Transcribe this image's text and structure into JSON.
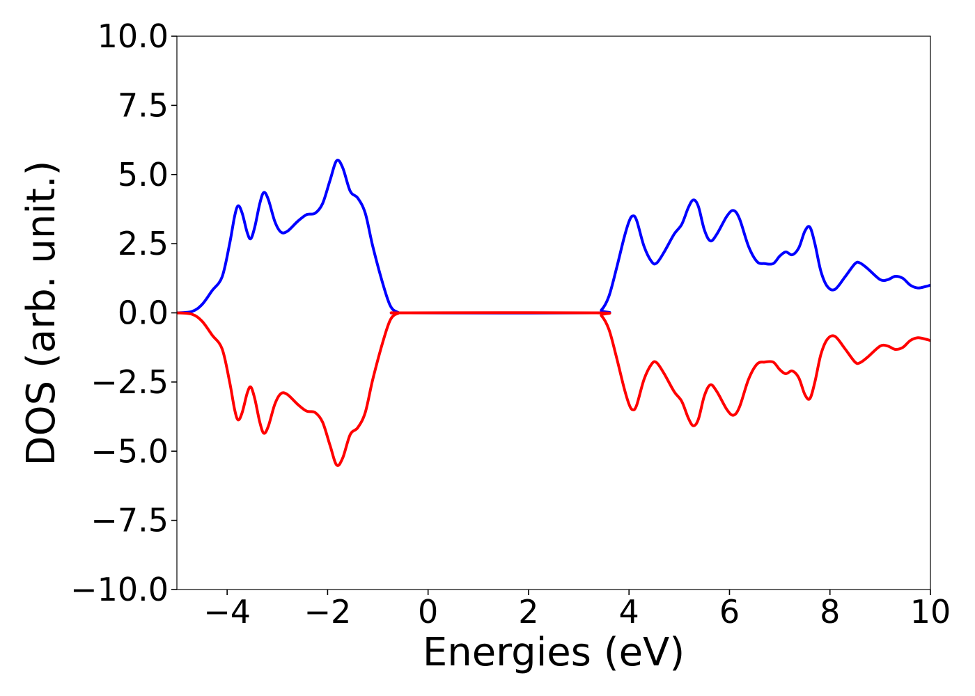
{
  "chart_data": {
    "type": "line",
    "title": "",
    "xlabel": "Energies (eV)",
    "ylabel": "DOS (arb. unit.)",
    "xlim": [
      -5,
      10
    ],
    "ylim": [
      -10,
      10
    ],
    "grid": false,
    "legend": "none",
    "x_ticks": [
      -4,
      -2,
      0,
      2,
      4,
      6,
      8,
      10
    ],
    "x_tick_labels": [
      "−4",
      "−2",
      "0",
      "2",
      "4",
      "6",
      "8",
      "10"
    ],
    "y_ticks": [
      10,
      7.5,
      5,
      2.5,
      0,
      -2.5,
      -5,
      -7.5,
      -10
    ],
    "y_tick_labels": [
      "10.0",
      "7.5",
      "5.0",
      "2.5",
      "0.0",
      "−2.5",
      "−5.0",
      "−7.5",
      "−10.0"
    ],
    "series": [
      {
        "color": "#0000ff",
        "points": [
          [
            -5.0,
            0.0
          ],
          [
            -4.7,
            0.05
          ],
          [
            -4.5,
            0.3
          ],
          [
            -4.3,
            0.8
          ],
          [
            -4.1,
            1.3
          ],
          [
            -3.95,
            2.5
          ],
          [
            -3.85,
            3.5
          ],
          [
            -3.78,
            3.87
          ],
          [
            -3.7,
            3.6
          ],
          [
            -3.6,
            2.9
          ],
          [
            -3.53,
            2.68
          ],
          [
            -3.45,
            3.1
          ],
          [
            -3.35,
            3.95
          ],
          [
            -3.27,
            4.35
          ],
          [
            -3.18,
            4.1
          ],
          [
            -3.05,
            3.3
          ],
          [
            -2.93,
            2.92
          ],
          [
            -2.8,
            2.95
          ],
          [
            -2.6,
            3.3
          ],
          [
            -2.42,
            3.55
          ],
          [
            -2.25,
            3.6
          ],
          [
            -2.1,
            3.95
          ],
          [
            -1.95,
            4.8
          ],
          [
            -1.82,
            5.5
          ],
          [
            -1.7,
            5.25
          ],
          [
            -1.55,
            4.4
          ],
          [
            -1.4,
            4.15
          ],
          [
            -1.25,
            3.6
          ],
          [
            -1.1,
            2.4
          ],
          [
            -0.9,
            1.05
          ],
          [
            -0.75,
            0.25
          ],
          [
            -0.6,
            0.02
          ],
          [
            -0.4,
            0.0
          ],
          [
            3.3,
            0.0
          ],
          [
            3.45,
            0.1
          ],
          [
            3.6,
            0.6
          ],
          [
            3.75,
            1.6
          ],
          [
            3.9,
            2.7
          ],
          [
            4.0,
            3.3
          ],
          [
            4.07,
            3.5
          ],
          [
            4.15,
            3.35
          ],
          [
            4.3,
            2.4
          ],
          [
            4.45,
            1.85
          ],
          [
            4.55,
            1.8
          ],
          [
            4.7,
            2.2
          ],
          [
            4.9,
            2.85
          ],
          [
            5.05,
            3.2
          ],
          [
            5.18,
            3.8
          ],
          [
            5.28,
            4.08
          ],
          [
            5.38,
            3.85
          ],
          [
            5.5,
            3.0
          ],
          [
            5.62,
            2.6
          ],
          [
            5.75,
            2.85
          ],
          [
            5.95,
            3.5
          ],
          [
            6.08,
            3.7
          ],
          [
            6.2,
            3.4
          ],
          [
            6.38,
            2.4
          ],
          [
            6.55,
            1.85
          ],
          [
            6.7,
            1.78
          ],
          [
            6.87,
            1.78
          ],
          [
            7.0,
            2.05
          ],
          [
            7.12,
            2.2
          ],
          [
            7.25,
            2.1
          ],
          [
            7.38,
            2.35
          ],
          [
            7.5,
            2.95
          ],
          [
            7.6,
            3.1
          ],
          [
            7.7,
            2.5
          ],
          [
            7.82,
            1.5
          ],
          [
            7.95,
            0.95
          ],
          [
            8.1,
            0.85
          ],
          [
            8.3,
            1.3
          ],
          [
            8.5,
            1.78
          ],
          [
            8.6,
            1.8
          ],
          [
            8.75,
            1.6
          ],
          [
            9.0,
            1.2
          ],
          [
            9.15,
            1.2
          ],
          [
            9.3,
            1.32
          ],
          [
            9.45,
            1.25
          ],
          [
            9.6,
            1.0
          ],
          [
            9.75,
            0.9
          ],
          [
            9.9,
            0.95
          ],
          [
            10.0,
            1.0
          ]
        ]
      },
      {
        "color": "#ff0000",
        "points": [
          [
            -5.0,
            0.0
          ],
          [
            -4.7,
            -0.05
          ],
          [
            -4.5,
            -0.3
          ],
          [
            -4.3,
            -0.8
          ],
          [
            -4.1,
            -1.3
          ],
          [
            -3.95,
            -2.5
          ],
          [
            -3.85,
            -3.5
          ],
          [
            -3.78,
            -3.87
          ],
          [
            -3.7,
            -3.6
          ],
          [
            -3.6,
            -2.9
          ],
          [
            -3.53,
            -2.68
          ],
          [
            -3.45,
            -3.1
          ],
          [
            -3.35,
            -3.95
          ],
          [
            -3.27,
            -4.35
          ],
          [
            -3.18,
            -4.1
          ],
          [
            -3.05,
            -3.3
          ],
          [
            -2.93,
            -2.92
          ],
          [
            -2.8,
            -2.95
          ],
          [
            -2.6,
            -3.3
          ],
          [
            -2.42,
            -3.55
          ],
          [
            -2.25,
            -3.6
          ],
          [
            -2.1,
            -3.95
          ],
          [
            -1.95,
            -4.8
          ],
          [
            -1.82,
            -5.5
          ],
          [
            -1.7,
            -5.25
          ],
          [
            -1.55,
            -4.4
          ],
          [
            -1.4,
            -4.15
          ],
          [
            -1.25,
            -3.6
          ],
          [
            -1.1,
            -2.4
          ],
          [
            -0.9,
            -1.05
          ],
          [
            -0.75,
            -0.25
          ],
          [
            -0.6,
            -0.02
          ],
          [
            -0.4,
            0.0
          ],
          [
            3.3,
            0.0
          ],
          [
            3.45,
            -0.1
          ],
          [
            3.6,
            -0.6
          ],
          [
            3.75,
            -1.6
          ],
          [
            3.9,
            -2.7
          ],
          [
            4.0,
            -3.3
          ],
          [
            4.07,
            -3.5
          ],
          [
            4.15,
            -3.35
          ],
          [
            4.3,
            -2.4
          ],
          [
            4.45,
            -1.85
          ],
          [
            4.55,
            -1.8
          ],
          [
            4.7,
            -2.2
          ],
          [
            4.9,
            -2.85
          ],
          [
            5.05,
            -3.2
          ],
          [
            5.18,
            -3.8
          ],
          [
            5.28,
            -4.08
          ],
          [
            5.38,
            -3.85
          ],
          [
            5.5,
            -3.0
          ],
          [
            5.62,
            -2.6
          ],
          [
            5.75,
            -2.85
          ],
          [
            5.95,
            -3.5
          ],
          [
            6.08,
            -3.7
          ],
          [
            6.2,
            -3.4
          ],
          [
            6.38,
            -2.4
          ],
          [
            6.55,
            -1.85
          ],
          [
            6.7,
            -1.78
          ],
          [
            6.87,
            -1.78
          ],
          [
            7.0,
            -2.05
          ],
          [
            7.12,
            -2.2
          ],
          [
            7.25,
            -2.1
          ],
          [
            7.38,
            -2.35
          ],
          [
            7.5,
            -2.95
          ],
          [
            7.6,
            -3.1
          ],
          [
            7.7,
            -2.5
          ],
          [
            7.82,
            -1.5
          ],
          [
            7.95,
            -0.95
          ],
          [
            8.1,
            -0.85
          ],
          [
            8.3,
            -1.3
          ],
          [
            8.5,
            -1.78
          ],
          [
            8.6,
            -1.8
          ],
          [
            8.75,
            -1.6
          ],
          [
            9.0,
            -1.2
          ],
          [
            9.15,
            -1.2
          ],
          [
            9.3,
            -1.32
          ],
          [
            9.45,
            -1.25
          ],
          [
            9.6,
            -1.0
          ],
          [
            9.75,
            -0.9
          ],
          [
            9.9,
            -0.95
          ],
          [
            10.0,
            -1.0
          ]
        ]
      }
    ]
  }
}
